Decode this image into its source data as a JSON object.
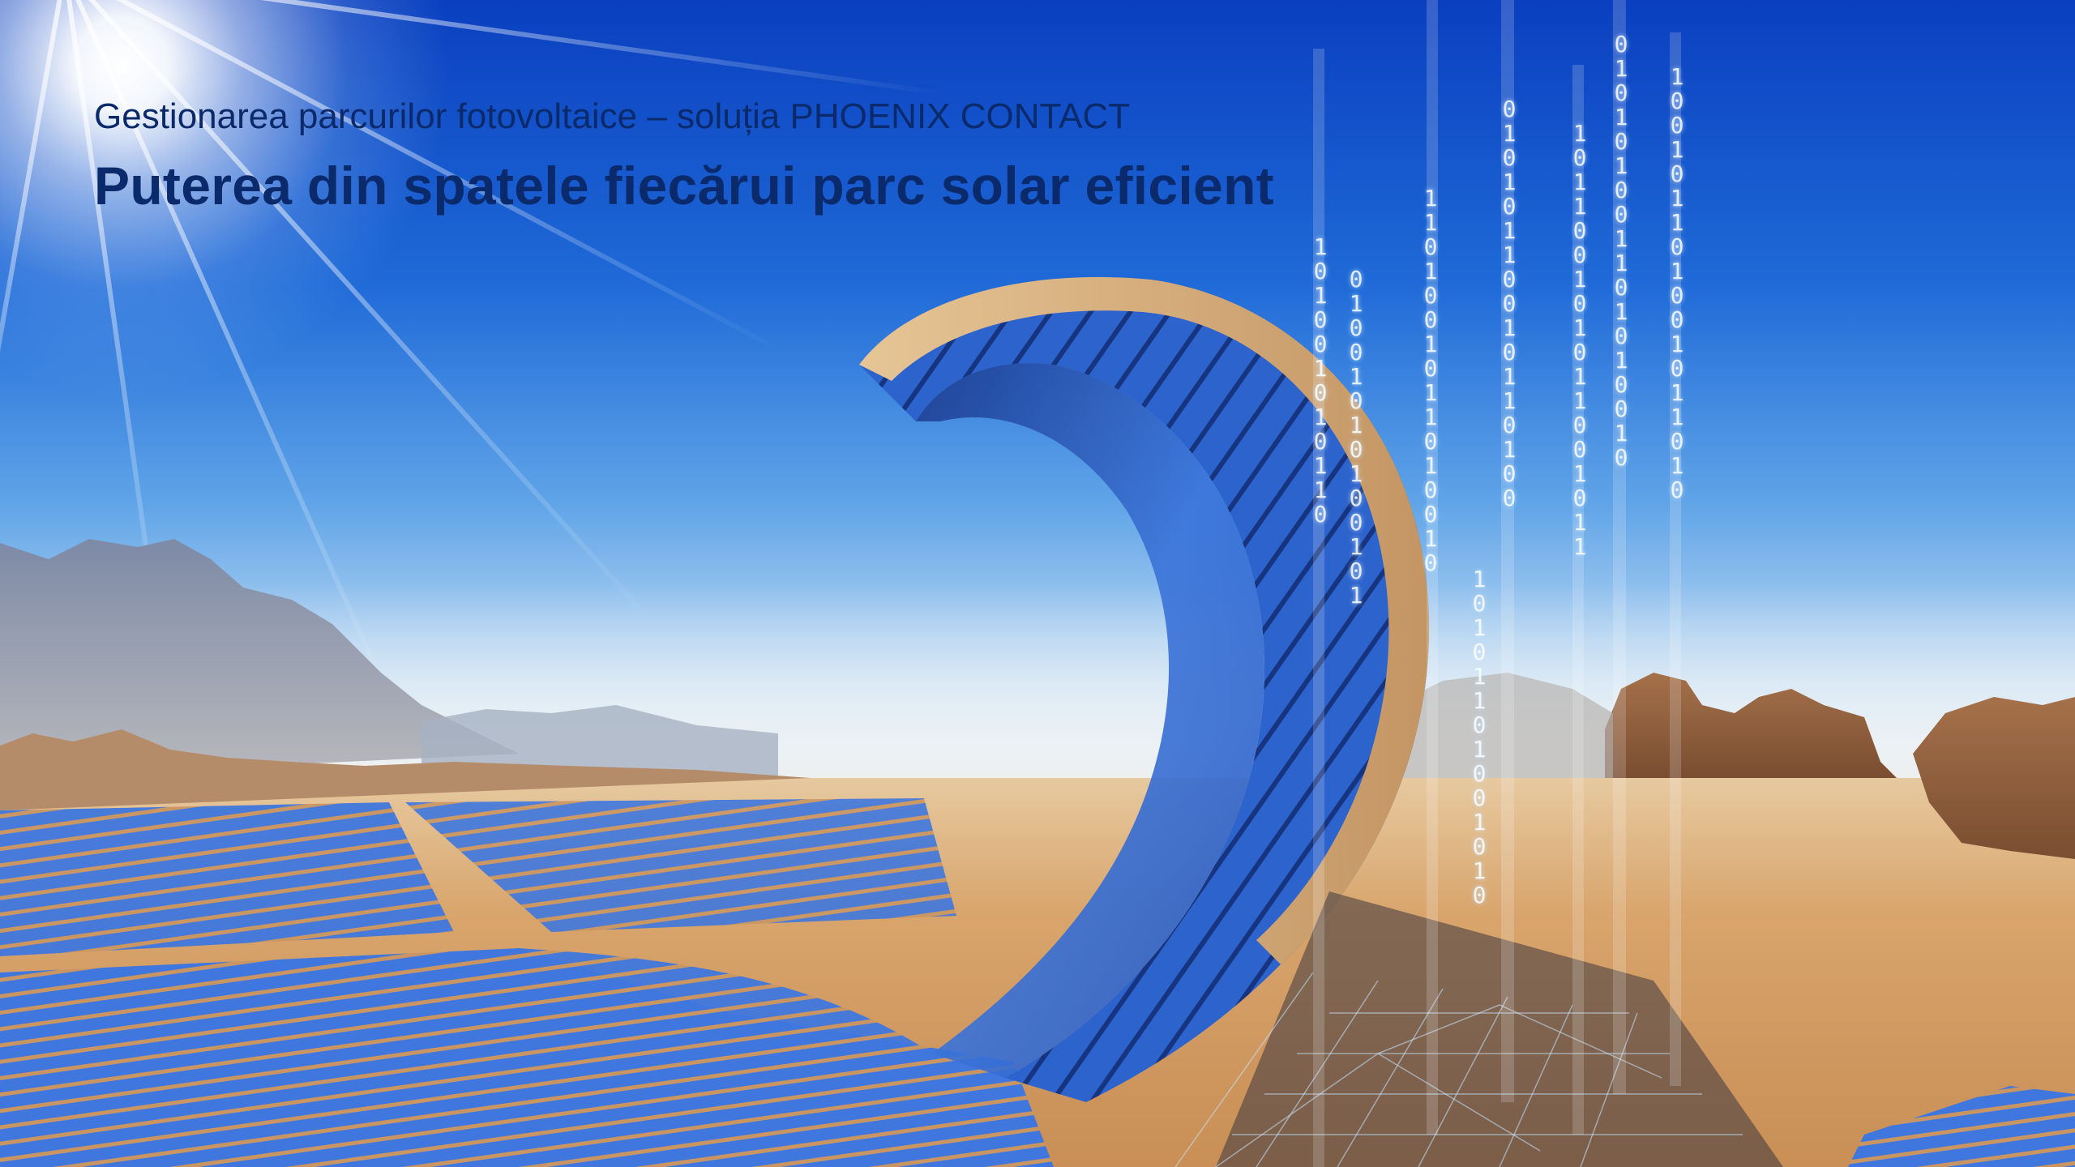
{
  "hero": {
    "subtitle_prefix": "Gestionarea parcurilor fotovoltaice – soluția",
    "subtitle_brand": "PHOENIX CONTACT",
    "headline": "Puterea din spatele fiecărui parc solar eficient"
  },
  "colors": {
    "headline": "#0b2a6b",
    "sky_top": "#0a3fbf",
    "panel_blue": "#2f66d6",
    "sand": "#d8a56c"
  },
  "binary_columns": [
    "1\n0\n1\n0\n0\n1\n0\n1\n0\n1\n1\n0",
    "0\n1\n0\n0\n1\n0\n1\n0\n1\n0\n0\n1\n0\n1",
    "1\n1\n0\n1\n0\n0\n1\n0\n1\n1\n0\n1\n0\n0\n1\n0",
    "0\n1\n0\n1\n0\n1\n1\n0\n0\n1\n0\n1\n1\n0\n1\n0\n0",
    "1\n0\n1\n1\n0\n0\n1\n0\n1\n0\n1\n1\n0\n0\n1\n0\n1\n1",
    "0\n1\n0\n1\n0\n1\n0\n0\n1\n1\n0\n1\n0\n1\n0\n0\n1\n0",
    "1\n0\n0\n1\n0\n1\n1\n0\n1\n0\n0\n1\n0\n1\n1\n0\n1\n0",
    "1\n0\n1\n0\n1\n1\n0\n1\n0\n0\n1\n0\n1\n0"
  ]
}
